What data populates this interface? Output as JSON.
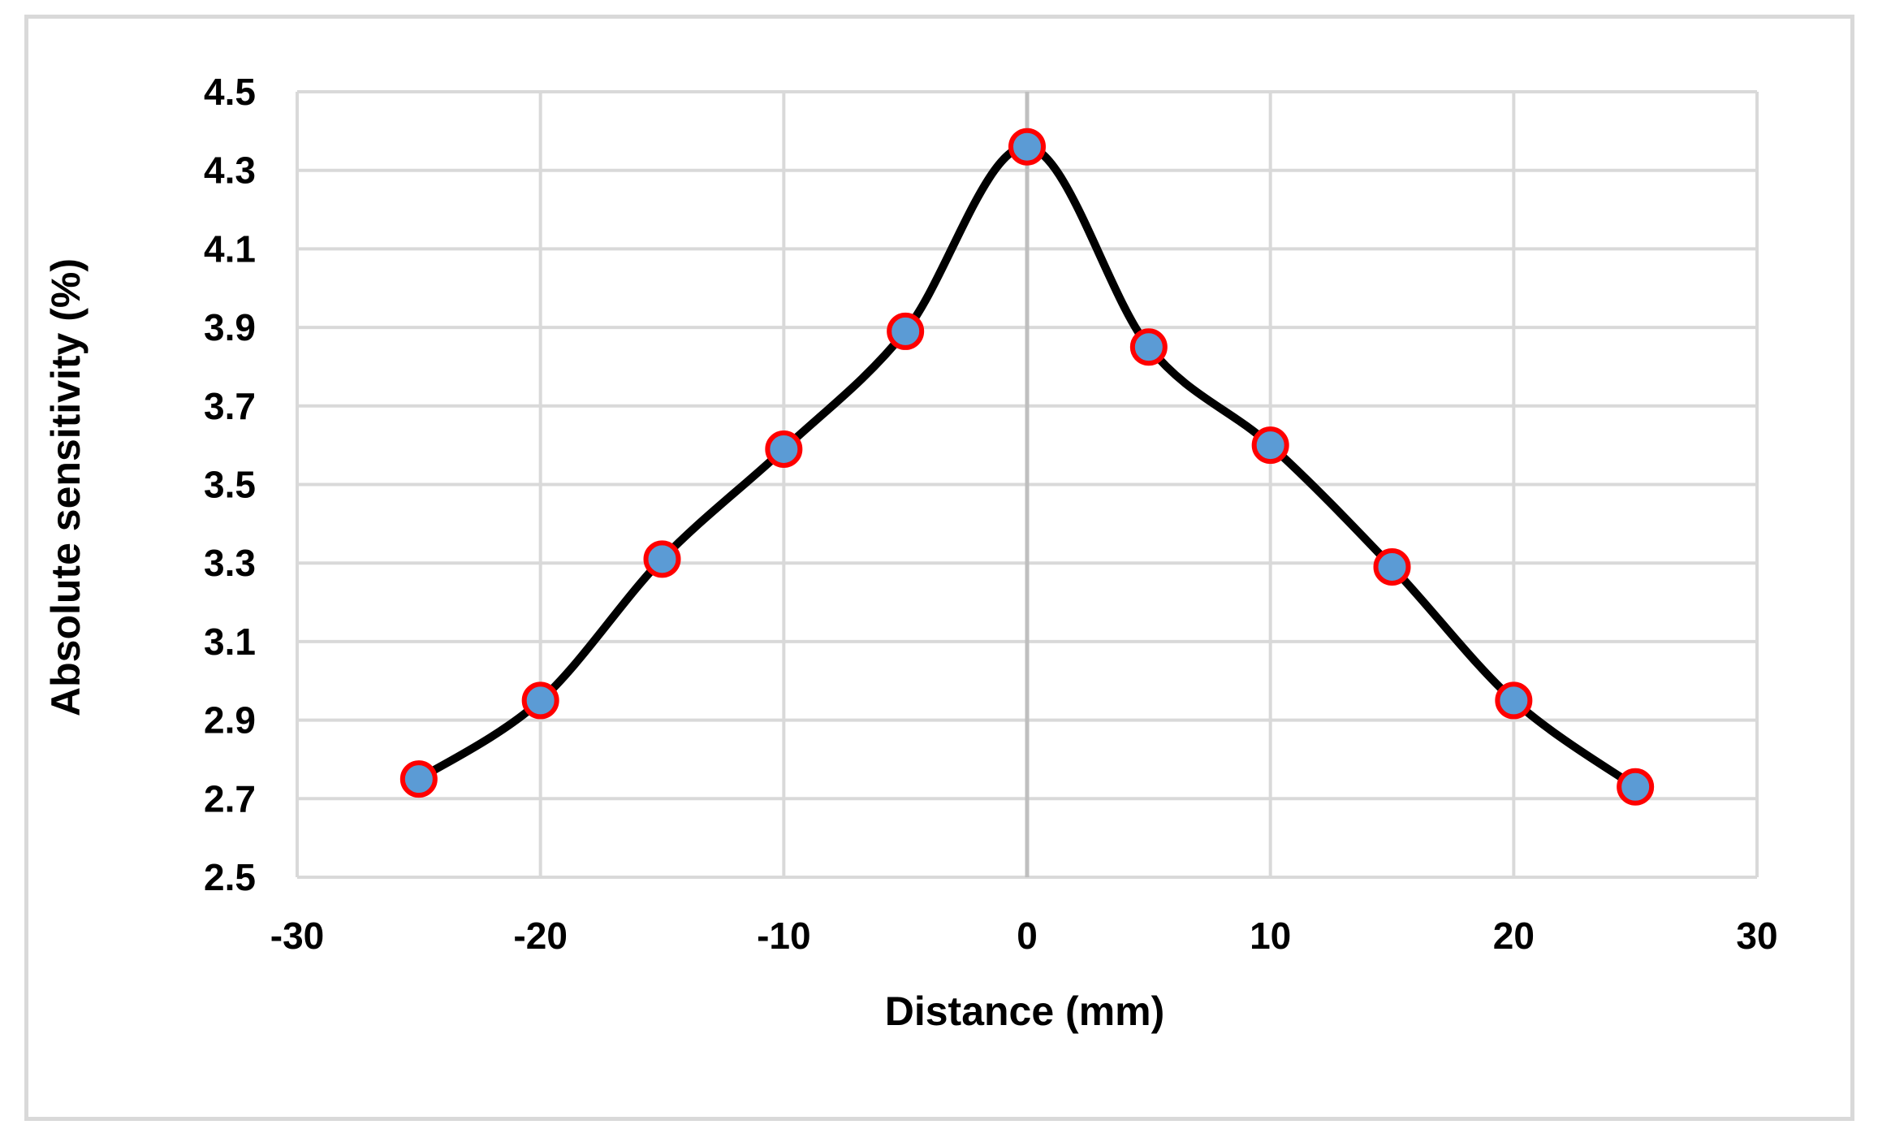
{
  "chart_data": {
    "type": "scatter",
    "title": "",
    "xlabel": "Distance (mm)",
    "ylabel": "Absolute sensitivity (%)",
    "xlim": [
      -30,
      30
    ],
    "ylim": [
      2.5,
      4.5
    ],
    "x_ticks": [
      "-30",
      "-20",
      "-10",
      "0",
      "10",
      "20",
      "30"
    ],
    "y_ticks": [
      "2.5",
      "2.7",
      "2.9",
      "3.1",
      "3.3",
      "3.5",
      "3.7",
      "3.9",
      "4.1",
      "4.3",
      "4.5"
    ],
    "grid": true,
    "smooth_line": true,
    "line_color": "#000000",
    "marker_fill": "#5b9bd5",
    "marker_edge": "#ff0000",
    "grid_color": "#d9d9d9",
    "series": [
      {
        "x": [
          -25,
          -20,
          -15,
          -10,
          -5,
          0,
          5,
          10,
          15,
          20,
          25
        ],
        "y": [
          2.75,
          2.95,
          3.31,
          3.59,
          3.89,
          4.36,
          3.85,
          3.6,
          3.29,
          2.95,
          2.73
        ]
      }
    ]
  }
}
